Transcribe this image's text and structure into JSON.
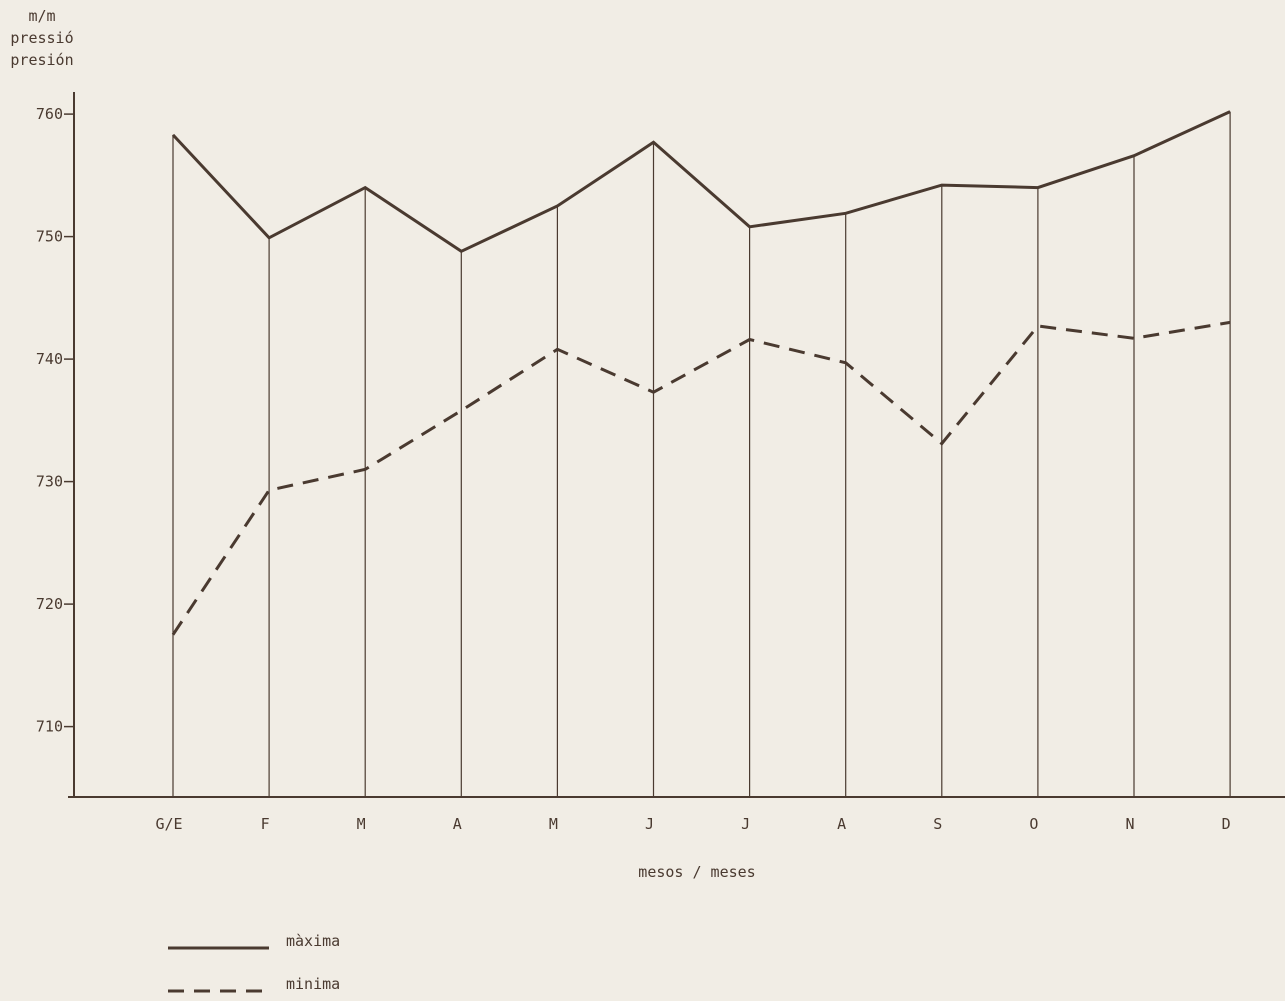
{
  "chart_data": {
    "type": "line",
    "title": "",
    "ylabel": [
      "m/m",
      "pressió",
      "presión"
    ],
    "xlabel": "mesos / meses",
    "categories": [
      "G/E",
      "F",
      "M",
      "A",
      "M",
      "J",
      "J",
      "A",
      "S",
      "O",
      "N",
      "D"
    ],
    "yticks": [
      710,
      720,
      730,
      740,
      750,
      760
    ],
    "ylim": [
      704.3,
      761.8
    ],
    "grid": "vertical lines at each month",
    "legend_position": "bottom-left",
    "series": [
      {
        "name": "màxima",
        "style": "solid",
        "values": [
          758.3,
          749.9,
          754.0,
          748.8,
          752.5,
          757.7,
          750.8,
          751.9,
          754.2,
          754.0,
          756.6,
          760.2
        ]
      },
      {
        "name": "minima",
        "style": "dashed",
        "values": [
          717.5,
          729.3,
          731.0,
          735.8,
          740.8,
          737.3,
          741.6,
          739.7,
          733.1,
          742.7,
          741.7,
          743.0
        ]
      }
    ],
    "colors": {
      "line": "#4a3a30",
      "axis": "#4a3a30",
      "background": "#f1ede5"
    }
  }
}
